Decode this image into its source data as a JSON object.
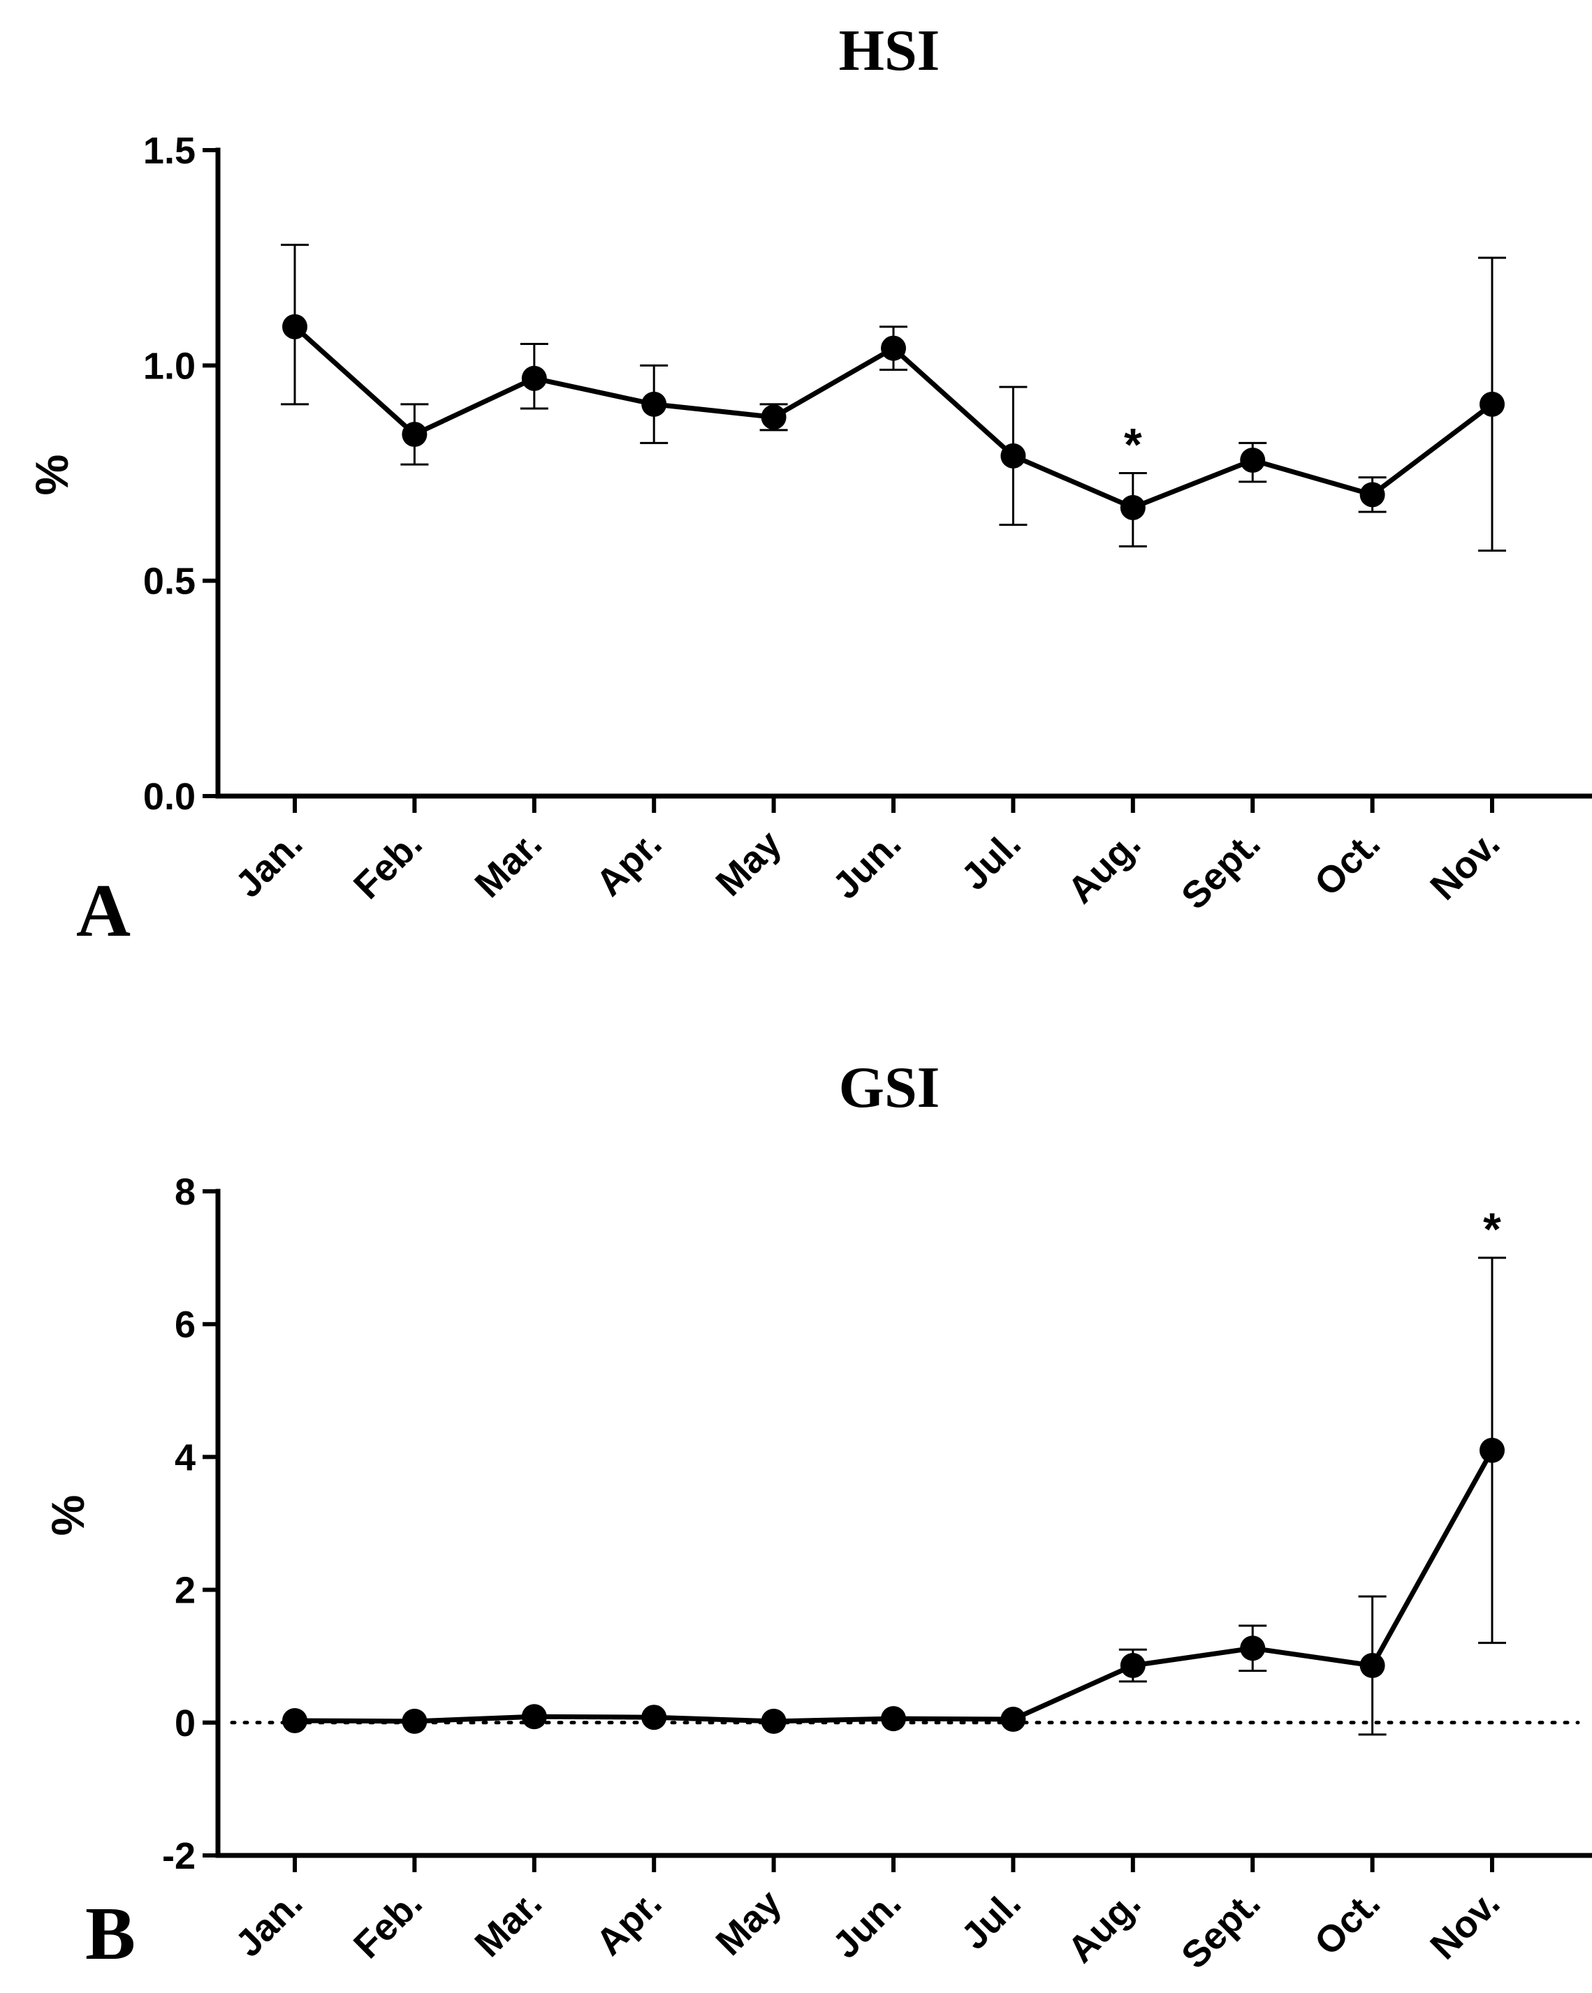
{
  "chart_data": [
    {
      "type": "line",
      "panel": "A",
      "title": "HSI",
      "ylabel": "%",
      "xlabel": "",
      "ylim": [
        0,
        1.5
      ],
      "yticks": [
        "0.0",
        "0.5",
        "1.0",
        "1.5"
      ],
      "ytick_values": [
        0,
        0.5,
        1.0,
        1.5
      ],
      "categories": [
        "Jan.",
        "Feb.",
        "Mar.",
        "Apr.",
        "May",
        "Jun.",
        "Jul.",
        "Aug.",
        "Sept.",
        "Oct.",
        "Nov."
      ],
      "values": [
        1.09,
        0.84,
        0.97,
        0.91,
        0.88,
        1.04,
        0.79,
        0.67,
        0.78,
        0.7,
        0.91
      ],
      "err_low": [
        0.91,
        0.77,
        0.9,
        0.82,
        0.85,
        0.99,
        0.63,
        0.58,
        0.73,
        0.66,
        0.57
      ],
      "err_high": [
        1.28,
        0.91,
        1.05,
        1.0,
        0.91,
        1.09,
        0.95,
        0.75,
        0.82,
        0.74,
        1.25
      ],
      "zero_line": false,
      "annotations": [
        {
          "category": "Aug.",
          "text": "*"
        }
      ]
    },
    {
      "type": "line",
      "panel": "B",
      "title": "GSI",
      "ylabel": "%",
      "xlabel": "",
      "ylim": [
        -2,
        8
      ],
      "yticks": [
        "-2",
        "0",
        "2",
        "4",
        "6",
        "8"
      ],
      "ytick_values": [
        -2,
        0,
        2,
        4,
        6,
        8
      ],
      "categories": [
        "Jan.",
        "Feb.",
        "Mar.",
        "Apr.",
        "May",
        "Jun.",
        "Jul.",
        "Aug.",
        "Sept.",
        "Oct.",
        "Nov."
      ],
      "values": [
        0.03,
        0.02,
        0.09,
        0.08,
        0.02,
        0.06,
        0.05,
        0.86,
        1.12,
        0.86,
        4.1
      ],
      "err_low": [
        0.03,
        0.02,
        0.09,
        0.08,
        0.02,
        0.06,
        0.05,
        0.62,
        0.78,
        -0.18,
        1.2
      ],
      "err_high": [
        0.03,
        0.02,
        0.09,
        0.08,
        0.02,
        0.06,
        0.05,
        1.1,
        1.46,
        1.9,
        7.0
      ],
      "zero_line": true,
      "annotations": [
        {
          "category": "Nov.",
          "text": "*"
        }
      ]
    }
  ]
}
